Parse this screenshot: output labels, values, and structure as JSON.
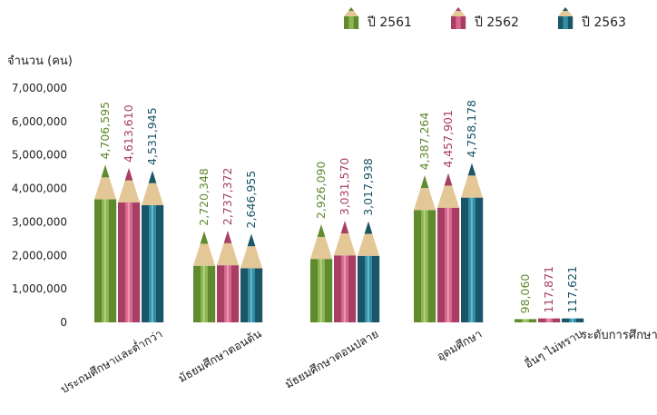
{
  "chart_data": {
    "type": "bar",
    "ylabel": "จำนวน (คน)",
    "xlabel": "ระดับการศึกษา",
    "ylim": [
      0,
      7000000
    ],
    "yticks": [
      0,
      1000000,
      2000000,
      3000000,
      4000000,
      5000000,
      6000000,
      7000000
    ],
    "ytick_labels": [
      "0",
      "1,000,000",
      "2,000,000",
      "3,000,000",
      "4,000,000",
      "5,000,000",
      "6,000,000",
      "7,000,000"
    ],
    "categories": [
      "ประถมศึกษาและต่ำกว่า",
      "มัธยมศึกษาตอนต้น",
      "มัธยมศึกษาตอนปลาย",
      "อุดมศึกษา",
      "อื่นๆ ไม่ทราบ"
    ],
    "series": [
      {
        "name": "ปี 2561",
        "values": [
          4706595,
          2720348,
          2926090,
          4387264,
          98060
        ],
        "labels": [
          "4,706,595",
          "2,720,348",
          "2,926,090",
          "4,387,264",
          "98,060"
        ],
        "color": "#8DB64F",
        "dark": "#5F8A2E"
      },
      {
        "name": "ปี 2562",
        "values": [
          4613610,
          2737372,
          3031570,
          4457901,
          117871
        ],
        "labels": [
          "4,613,610",
          "2,737,372",
          "3,031,570",
          "4,457,901",
          "117,871"
        ],
        "color": "#D9688F",
        "dark": "#A83E63"
      },
      {
        "name": "ปี 2563",
        "values": [
          4531945,
          2646955,
          3017938,
          4758178,
          117621
        ],
        "labels": [
          "4,531,945",
          "2,646,955",
          "3,017,938",
          "4,758,178",
          "117,621"
        ],
        "color": "#2F8FA8",
        "dark": "#1A5568"
      }
    ],
    "legend_position": "top-right",
    "grid": false
  }
}
